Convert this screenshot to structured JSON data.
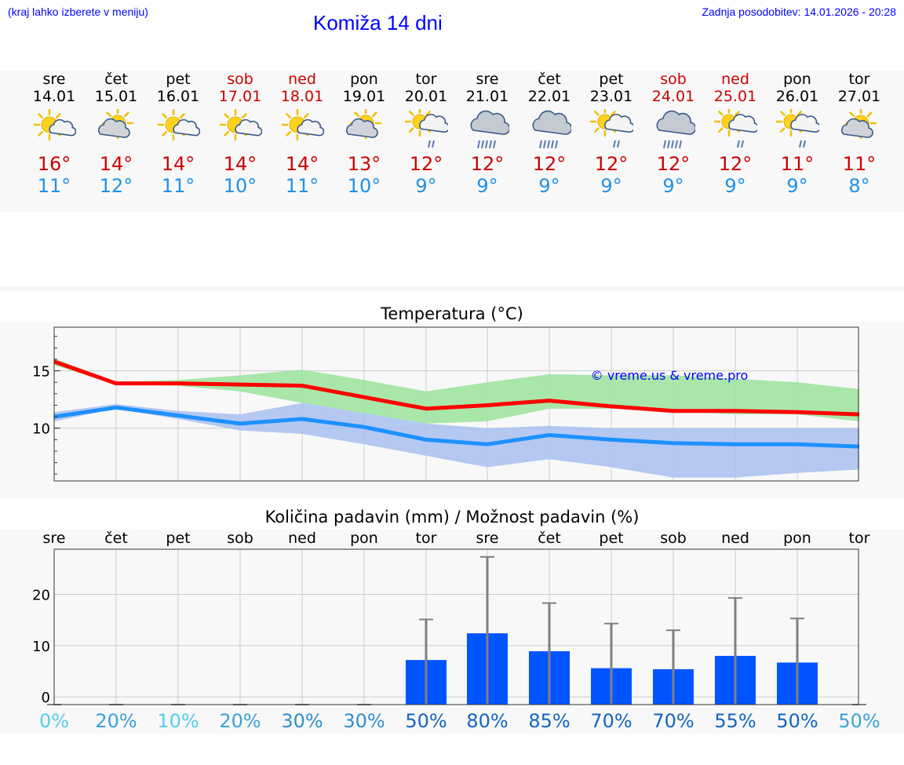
{
  "header": {
    "menu_hint": "(kraj lahko izberete v meniju)",
    "title": "Komiža 14 dni",
    "updated": "Zadnja posodobitev: 14.01.2026 - 20:28"
  },
  "days": [
    {
      "name": "sre",
      "date": "14.01",
      "weekend": false,
      "icon": "sun-cloud-icon",
      "max": "16°",
      "min": "11°"
    },
    {
      "name": "čet",
      "date": "15.01",
      "weekend": false,
      "icon": "cloud-sun-icon",
      "max": "14°",
      "min": "12°"
    },
    {
      "name": "pet",
      "date": "16.01",
      "weekend": false,
      "icon": "sun-cloud-icon",
      "max": "14°",
      "min": "11°"
    },
    {
      "name": "sob",
      "date": "17.01",
      "weekend": true,
      "icon": "sun-cloud-icon",
      "max": "14°",
      "min": "10°"
    },
    {
      "name": "ned",
      "date": "18.01",
      "weekend": true,
      "icon": "sun-cloud-icon",
      "max": "14°",
      "min": "11°"
    },
    {
      "name": "pon",
      "date": "19.01",
      "weekend": false,
      "icon": "cloud-sun-icon",
      "max": "13°",
      "min": "10°"
    },
    {
      "name": "tor",
      "date": "20.01",
      "weekend": false,
      "icon": "sun-cloud-light-rain-icon",
      "max": "12°",
      "min": "9°"
    },
    {
      "name": "sre",
      "date": "21.01",
      "weekend": false,
      "icon": "cloud-rain-icon",
      "max": "12°",
      "min": "9°"
    },
    {
      "name": "čet",
      "date": "22.01",
      "weekend": false,
      "icon": "cloud-rain-icon",
      "max": "12°",
      "min": "9°"
    },
    {
      "name": "pet",
      "date": "23.01",
      "weekend": false,
      "icon": "sun-cloud-light-rain-icon",
      "max": "12°",
      "min": "9°"
    },
    {
      "name": "sob",
      "date": "24.01",
      "weekend": true,
      "icon": "cloud-rain-icon",
      "max": "12°",
      "min": "9°"
    },
    {
      "name": "ned",
      "date": "25.01",
      "weekend": true,
      "icon": "sun-cloud-light-rain-icon",
      "max": "12°",
      "min": "9°"
    },
    {
      "name": "pon",
      "date": "26.01",
      "weekend": false,
      "icon": "sun-cloud-light-rain-icon",
      "max": "11°",
      "min": "9°"
    },
    {
      "name": "tor",
      "date": "27.01",
      "weekend": false,
      "icon": "cloud-sun-icon",
      "max": "11°",
      "min": "8°"
    }
  ],
  "colors": {
    "max_line": "#ff0000",
    "min_line": "#1e90ff",
    "max_band": "#9be39b",
    "min_band": "#a8c0f0",
    "bar": "#0055ff",
    "whisker": "#808080",
    "weekend": "#cc0000",
    "max_text": "#cc0000",
    "min_text": "#2090e8"
  },
  "chart_data": [
    {
      "type": "line",
      "title": "Temperatura (°C)",
      "watermark": "© vreme.us & vreme.pro",
      "categories": [
        "sre",
        "čet",
        "pet",
        "sob",
        "ned",
        "pon",
        "tor",
        "sre",
        "čet",
        "pet",
        "sob",
        "ned",
        "pon",
        "tor"
      ],
      "ylim": [
        5.4,
        18.8
      ],
      "yticks": [
        10,
        15
      ],
      "series": [
        {
          "name": "max",
          "values": [
            15.8,
            13.9,
            13.9,
            13.8,
            13.7,
            12.7,
            11.7,
            12.0,
            12.4,
            11.9,
            11.5,
            11.5,
            11.4,
            11.2
          ]
        },
        {
          "name": "min",
          "values": [
            11.0,
            11.8,
            11.1,
            10.4,
            10.8,
            10.1,
            9.0,
            8.6,
            9.4,
            9.0,
            8.7,
            8.6,
            8.6,
            8.4
          ]
        }
      ],
      "bands": [
        {
          "name": "max-range",
          "upper": [
            16.1,
            14.0,
            14.2,
            14.6,
            15.1,
            14.2,
            13.2,
            14.0,
            14.7,
            14.6,
            14.6,
            14.3,
            14.0,
            13.4
          ],
          "lower": [
            15.5,
            13.8,
            13.7,
            13.2,
            12.2,
            11.3,
            10.4,
            10.6,
            11.7,
            11.7,
            11.5,
            11.2,
            11.2,
            10.6
          ]
        },
        {
          "name": "min-range",
          "upper": [
            11.4,
            12.1,
            11.5,
            11.2,
            12.2,
            11.3,
            10.4,
            10.0,
            10.2,
            10.0,
            10.0,
            10.0,
            10.0,
            10.0
          ],
          "lower": [
            10.6,
            11.7,
            10.8,
            9.8,
            9.5,
            8.6,
            7.6,
            6.6,
            7.3,
            6.6,
            5.7,
            5.7,
            6.1,
            6.4
          ]
        }
      ]
    },
    {
      "type": "bar",
      "title": "Količina padavin (mm) / Možnost padavin (%)",
      "categories": [
        "sre",
        "čet",
        "pet",
        "sob",
        "ned",
        "pon",
        "tor",
        "sre",
        "čet",
        "pet",
        "sob",
        "ned",
        "pon",
        "tor"
      ],
      "ylim": [
        -1.5,
        28.8
      ],
      "yticks": [
        0,
        10,
        20
      ],
      "values": [
        0,
        0,
        0,
        0,
        0,
        0,
        7.2,
        12.4,
        8.9,
        5.6,
        5.4,
        8.0,
        6.7,
        0
      ],
      "errors_max": [
        0,
        0,
        0,
        0,
        0,
        0,
        15.1,
        27.3,
        18.3,
        14.3,
        13.0,
        19.3,
        15.3,
        0
      ],
      "probability": [
        "0%",
        "20%",
        "10%",
        "20%",
        "30%",
        "30%",
        "50%",
        "80%",
        "85%",
        "70%",
        "70%",
        "55%",
        "50%",
        "50%"
      ],
      "probability_colors": [
        "#55ccee",
        "#3aa0d8",
        "#55ccee",
        "#3aa0d8",
        "#2d8fd0",
        "#2d8fd0",
        "#1565c0",
        "#1565c0",
        "#1565c0",
        "#1565c0",
        "#1565c0",
        "#1565c0",
        "#1565c0",
        "#3aa0d8"
      ]
    }
  ]
}
